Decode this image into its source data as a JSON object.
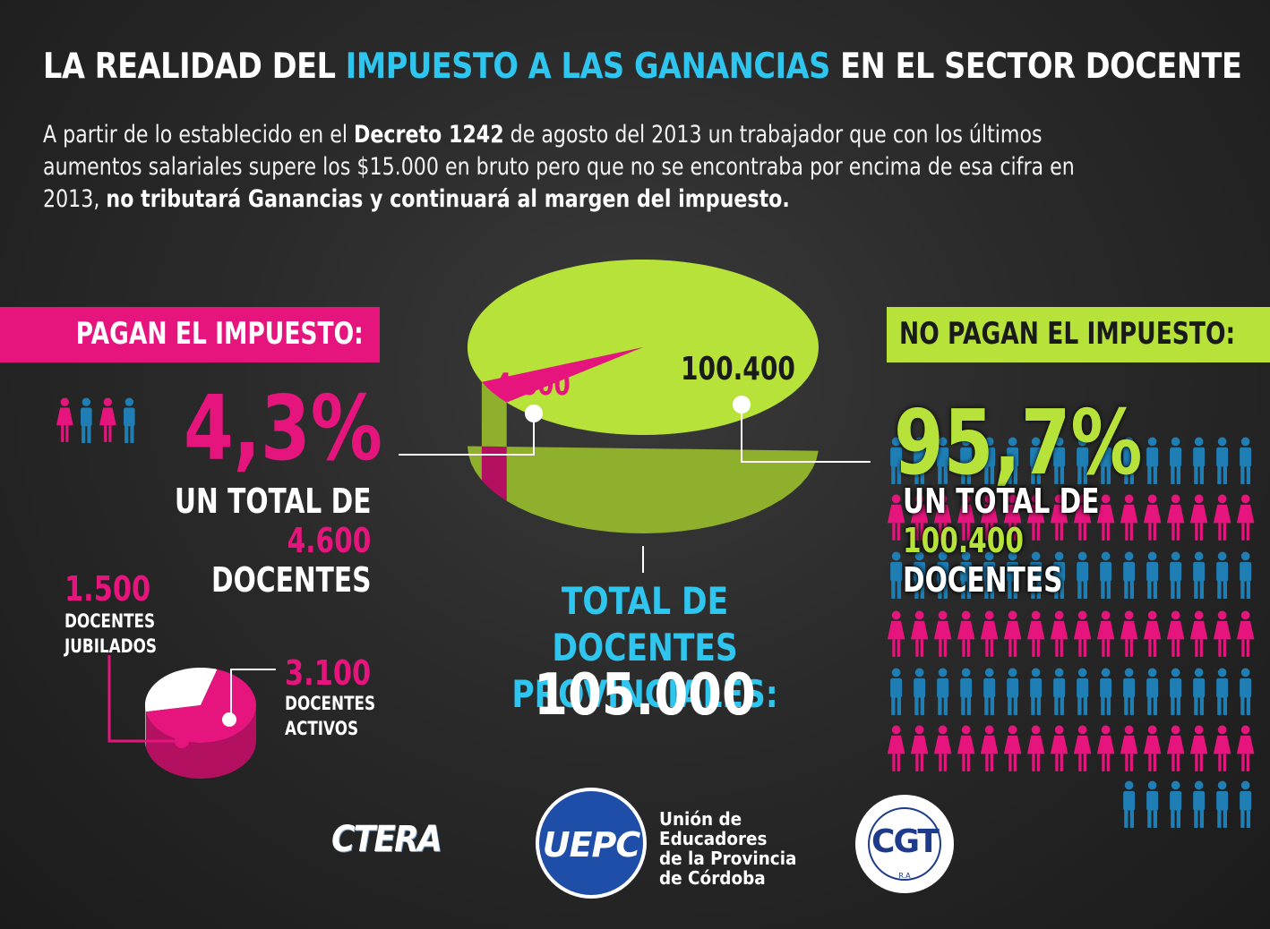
{
  "header": {
    "title_part1": "LA REALIDAD DEL ",
    "title_highlight": "IMPUESTO A LAS GANANCIAS",
    "title_part2": " EN EL SECTOR DOCENTE",
    "intro_1": "A partir de lo establecido en el ",
    "intro_bold_1": "Decreto 1242",
    "intro_2": " de agosto del 2013 un trabajador que con los últimos aumentos salariales supere los $15.000 en bruto pero que no se encontraba por encima de esa cifra en 2013, ",
    "intro_bold_2": "no tributará Ganancias y continuará al margen del impuesto."
  },
  "left": {
    "band_label": "PAGAN EL IMPUESTO:",
    "percent": "4,3%",
    "total_prefix": "UN TOTAL DE",
    "total_value": "4.600",
    "total_suffix": "DOCENTES",
    "jubilados_value": "1.500",
    "jubilados_label_1": "DOCENTES",
    "jubilados_label_2": "JUBILADOS",
    "activos_value": "3.100",
    "activos_label_1": "DOCENTES",
    "activos_label_2": "ACTIVOS"
  },
  "right": {
    "band_label": "NO PAGAN EL IMPUESTO:",
    "percent": "95,7%",
    "total_prefix": "UN TOTAL DE",
    "total_value": "100.400",
    "total_suffix": "DOCENTES"
  },
  "center": {
    "total_label_1": "TOTAL DE DOCENTES",
    "total_label_2": "PROVINCIALES:",
    "total_value": "105.000"
  },
  "logos": {
    "ctera": "CTERA",
    "uepc": "UEPC",
    "uepc_name_1": "Unión de",
    "uepc_name_2": "Educadores",
    "uepc_name_3": "de la Provincia",
    "uepc_name_4": "de Córdoba",
    "cgt": "CGT",
    "cgt_ring": "CONFEDERACION GENERAL DEL TRABAJO",
    "cgt_ra": "R.A"
  },
  "colors": {
    "pink": "#e6157e",
    "green": "#b7e23a",
    "cyan": "#2ec6ee",
    "blue": "#1f7fb5",
    "white": "#ffffff"
  },
  "chart_data": [
    {
      "type": "pie",
      "slices": [
        {
          "label": "4.600",
          "value": 4600,
          "color": "#e6157e"
        },
        {
          "label": "100.400",
          "value": 100400,
          "color": "#b7e23a"
        }
      ]
    },
    {
      "type": "pie",
      "slices": [
        {
          "label": "1.500",
          "value": 1500,
          "color": "#ffffff"
        },
        {
          "label": "3.100",
          "value": 3100,
          "color": "#e6157e"
        }
      ]
    }
  ]
}
